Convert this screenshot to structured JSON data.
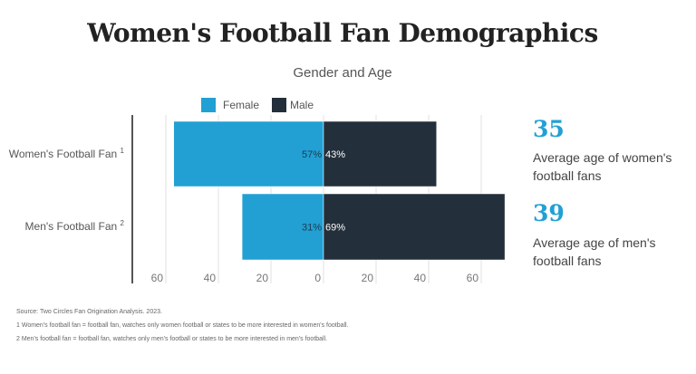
{
  "title": "Women's Football Fan Demographics",
  "subtitle": "Gender and Age",
  "colors": {
    "female": "#22a0d4",
    "male": "#232f3b"
  },
  "chart_data": {
    "type": "bar",
    "orientation": "horizontal-diverging",
    "categories": [
      "Women's Football Fan",
      "Men's Football Fan"
    ],
    "category_footnotes": [
      "1",
      "2"
    ],
    "series": [
      {
        "name": "Female",
        "values": [
          57,
          31
        ],
        "labels": [
          "57%",
          "31%"
        ]
      },
      {
        "name": "Male",
        "values": [
          43,
          69
        ],
        "labels": [
          "43%",
          "69%"
        ]
      }
    ],
    "xticks": [
      -60,
      -40,
      -20,
      0,
      20,
      40,
      60
    ],
    "xtick_labels": [
      "60",
      "40",
      "20",
      "0",
      "20",
      "40",
      "60"
    ],
    "xlim": [
      -72,
      72
    ],
    "grid": true,
    "legend": "top"
  },
  "stats": [
    {
      "value": "35",
      "label": "Average age of women's football fans"
    },
    {
      "value": "39",
      "label": "Average age of men's football fans"
    }
  ],
  "footnotes": [
    "Source: Two Circles Fan Origination Analysis. 2023.",
    "1 Women's football fan = football fan, watches only women football or states to be more interested in women's football.",
    "2 Men's football fan = football fan, watches only men's football or states to be more interested in men's football."
  ]
}
